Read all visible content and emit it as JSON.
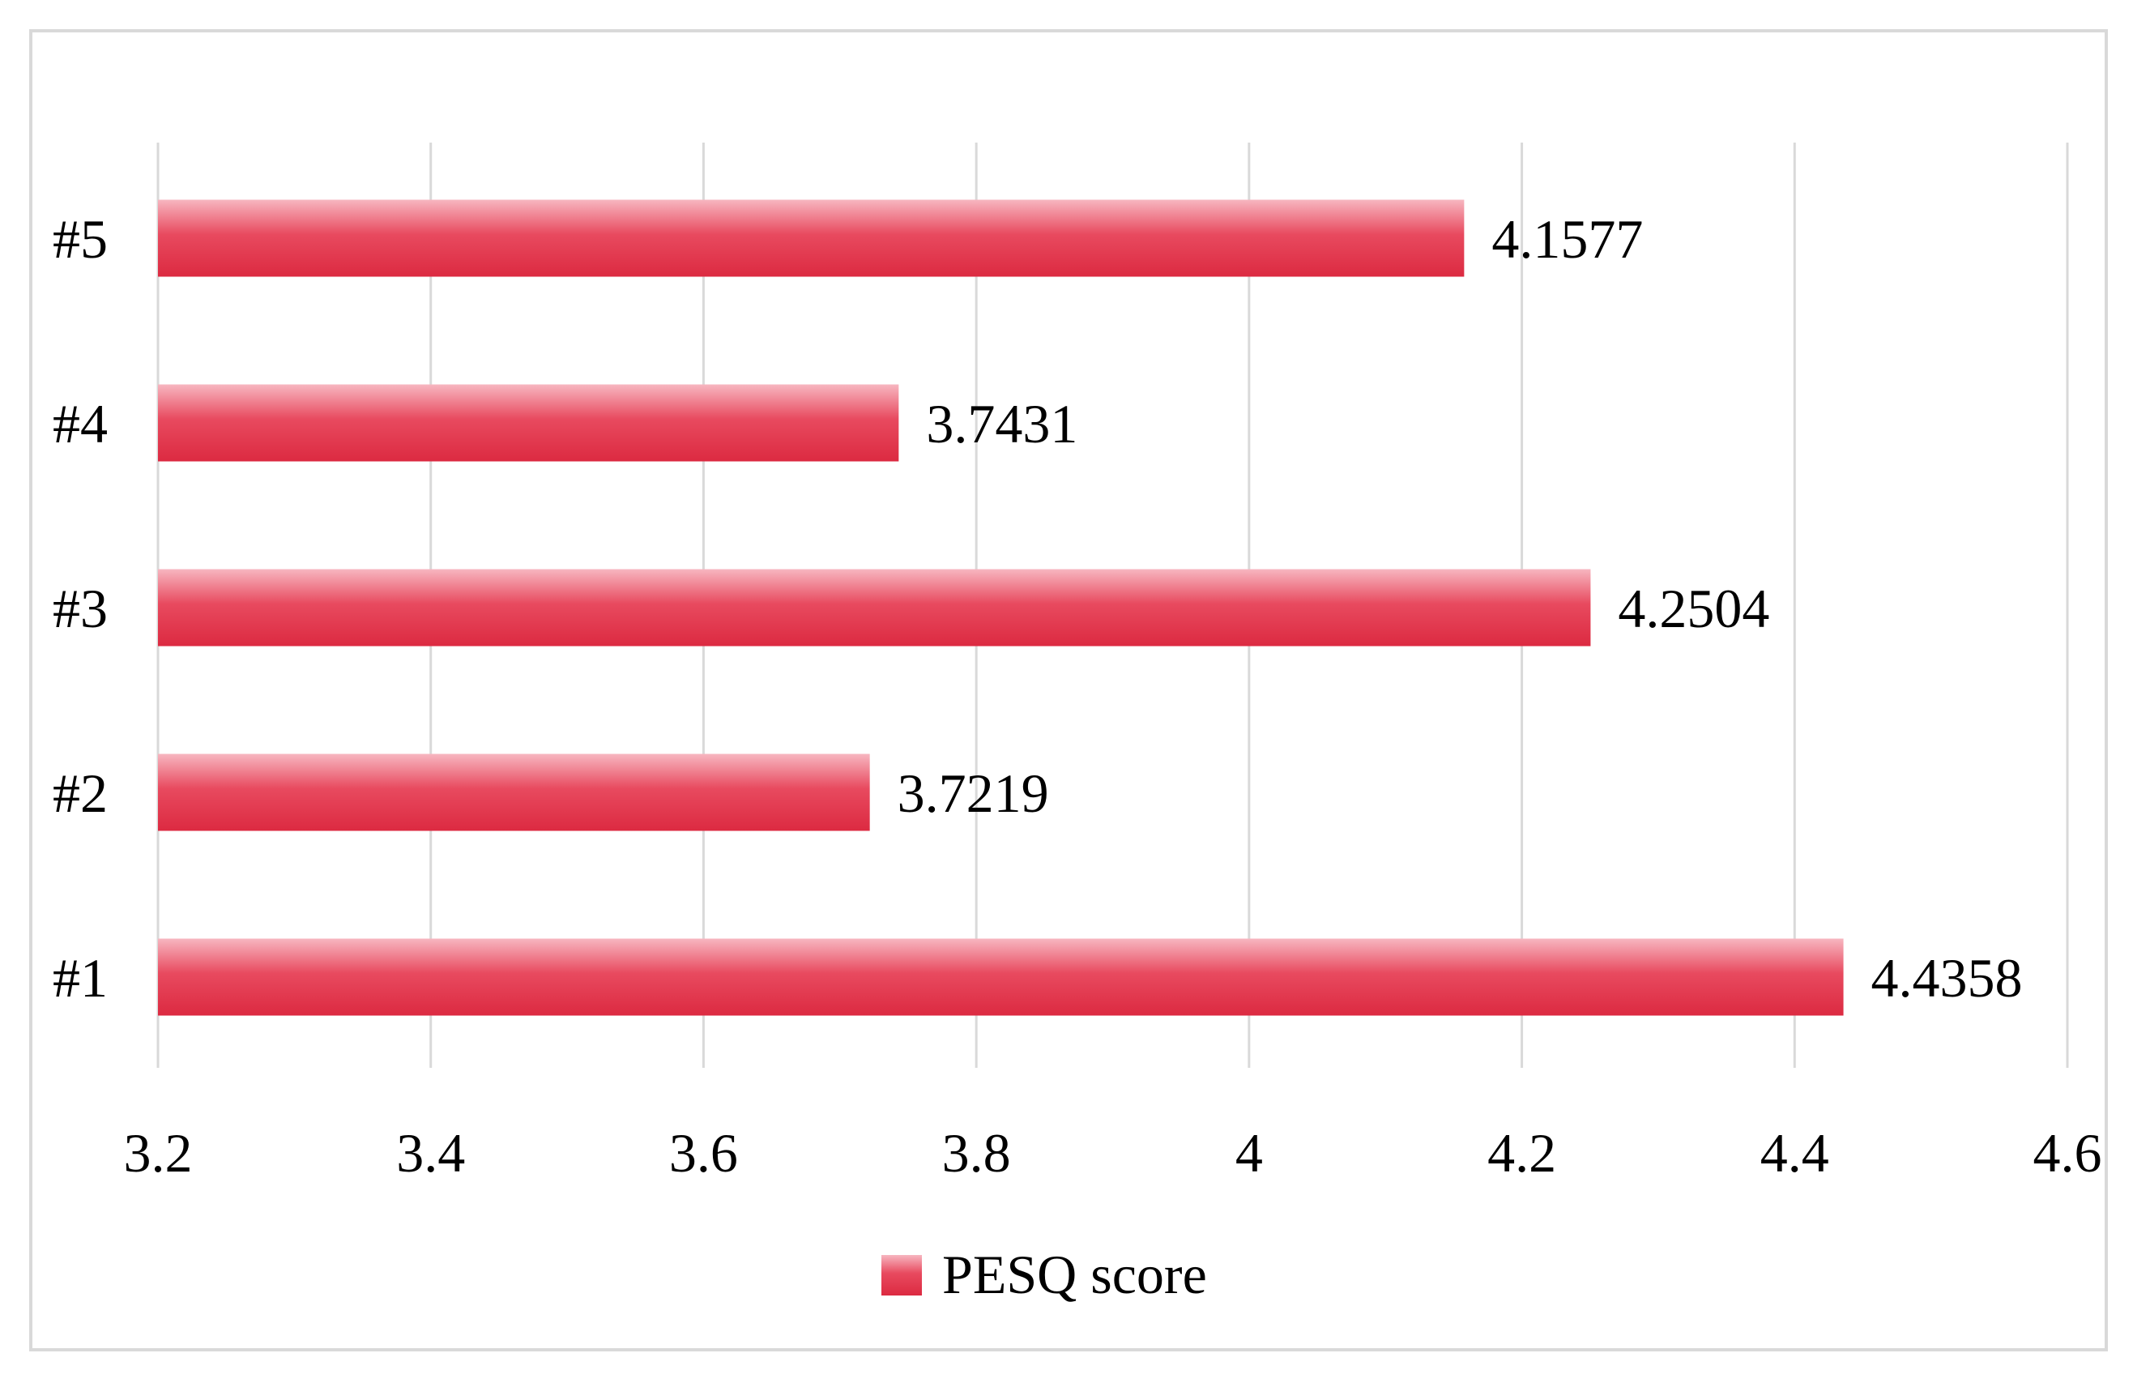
{
  "chart_data": {
    "type": "bar",
    "orientation": "horizontal",
    "categories": [
      "#1",
      "#2",
      "#3",
      "#4",
      "#5"
    ],
    "series": [
      {
        "name": "PESQ score",
        "values": [
          4.4358,
          3.7219,
          4.2504,
          3.7431,
          4.1577
        ],
        "value_labels": [
          "4.4358",
          "3.7219",
          "4.2504",
          "3.7431",
          "4.1577"
        ]
      }
    ],
    "xlim": [
      3.2,
      4.6
    ],
    "x_ticks": [
      3.2,
      3.4,
      3.6,
      3.8,
      4.0,
      4.2,
      4.4,
      4.6
    ],
    "x_tick_labels": [
      "3.2",
      "3.4",
      "3.6",
      "3.8",
      "4",
      "4.2",
      "4.4",
      "4.6"
    ],
    "title": "",
    "xlabel": "",
    "ylabel": "",
    "grid": "vertical",
    "legend_position": "bottom",
    "colors": {
      "bar_light": "#f7b6c0",
      "bar_mid": "#e84a5f",
      "bar_dark": "#dc2a41",
      "gridline": "#d9d9d9",
      "frame": "#d9d9d9"
    }
  }
}
